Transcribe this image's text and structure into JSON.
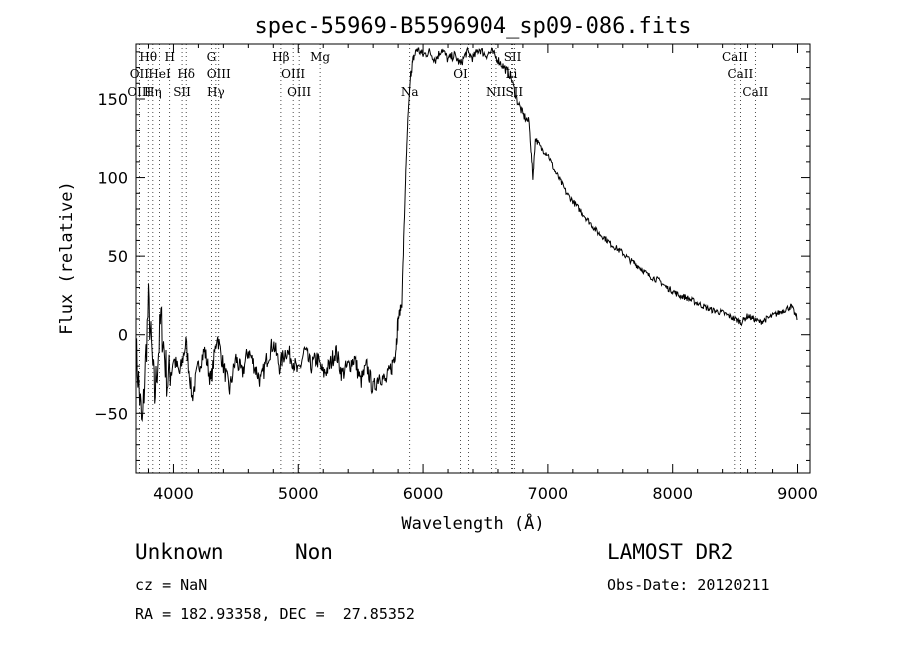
{
  "chart_data": {
    "type": "line",
    "title": "spec-55969-B5596904_sp09-086.fits",
    "xlabel": "Wavelength (Å)",
    "ylabel": "Flux (relative)",
    "xlim": [
      3700,
      9100
    ],
    "ylim": [
      -88,
      185
    ],
    "xticks": [
      4000,
      5000,
      6000,
      7000,
      8000,
      9000
    ],
    "yticks": [
      -50,
      0,
      50,
      100,
      150
    ],
    "grid": false,
    "legend": "none",
    "series": [
      {
        "x": [
          3700,
          3750,
          3800,
          3850,
          3900,
          3950,
          4000,
          4050,
          4100,
          4150,
          4200,
          4250,
          4300,
          4350,
          4400,
          4450,
          4500,
          4550,
          4600,
          4650,
          4700,
          4750,
          4800,
          4850,
          4900,
          4950,
          5000,
          5050,
          5100,
          5150,
          5200,
          5250,
          5300,
          5350,
          5400,
          5450,
          5500,
          5550,
          5600,
          5650,
          5700,
          5750,
          5780,
          5800,
          5830,
          5860,
          5880,
          5900,
          5920,
          5950,
          6000,
          6050,
          6100,
          6150,
          6200,
          6250,
          6300,
          6350,
          6400,
          6450,
          6500,
          6550,
          6600,
          6650,
          6700,
          6750,
          6800,
          6850,
          6880,
          6900,
          6950,
          7000,
          7050,
          7100,
          7150,
          7200,
          7250,
          7300,
          7350,
          7400,
          7450,
          7500,
          7550,
          7600,
          7650,
          7700,
          7750,
          7800,
          7850,
          7900,
          7950,
          8000,
          8050,
          8100,
          8150,
          8200,
          8250,
          8300,
          8350,
          8400,
          8450,
          8500,
          8550,
          8600,
          8650,
          8700,
          8750,
          8800,
          8850,
          8900,
          8950,
          9000
        ],
        "y": [
          -10,
          -60,
          20,
          -40,
          10,
          -30,
          -15,
          -25,
          -5,
          -40,
          -20,
          -10,
          -30,
          0,
          -20,
          -35,
          -15,
          -25,
          -10,
          -20,
          -30,
          -15,
          -5,
          -20,
          -10,
          -15,
          -25,
          -10,
          -20,
          -15,
          -25,
          -20,
          -10,
          -25,
          -20,
          -15,
          -30,
          -20,
          -35,
          -25,
          -30,
          -20,
          -10,
          10,
          20,
          100,
          140,
          165,
          175,
          182,
          178,
          180,
          175,
          182,
          175,
          178,
          172,
          180,
          176,
          182,
          178,
          180,
          175,
          170,
          165,
          150,
          140,
          135,
          100,
          125,
          118,
          115,
          105,
          98,
          90,
          85,
          80,
          75,
          70,
          65,
          62,
          58,
          55,
          52,
          48,
          45,
          42,
          38,
          36,
          34,
          30,
          28,
          25,
          24,
          22,
          20,
          18,
          16,
          15,
          14,
          12,
          10,
          8,
          12,
          10,
          8,
          10,
          12,
          14,
          16,
          18,
          10
        ]
      }
    ],
    "line_labels": [
      {
        "text": "Hθ",
        "x": 3798,
        "row": 0
      },
      {
        "text": "H",
        "x": 3970,
        "row": 0
      },
      {
        "text": "G",
        "x": 4304,
        "row": 0
      },
      {
        "text": "Hβ",
        "x": 4861,
        "row": 0
      },
      {
        "text": "Mg",
        "x": 5175,
        "row": 0
      },
      {
        "text": "SII",
        "x": 6717,
        "row": 0
      },
      {
        "text": "CaII",
        "x": 8498,
        "row": 0
      },
      {
        "text": "OII",
        "x": 3727,
        "row": 1
      },
      {
        "text": "HeI",
        "x": 3889,
        "row": 1
      },
      {
        "text": "Hδ",
        "x": 4102,
        "row": 1
      },
      {
        "text": "OIII",
        "x": 4363,
        "row": 1
      },
      {
        "text": "OIII",
        "x": 4959,
        "row": 1
      },
      {
        "text": "OI",
        "x": 6300,
        "row": 1
      },
      {
        "text": "Li",
        "x": 6708,
        "row": 1
      },
      {
        "text": "CaII",
        "x": 8542,
        "row": 1
      },
      {
        "text": "OIII",
        "x": 3727,
        "row": 2
      },
      {
        "text": "Hη",
        "x": 3835,
        "row": 2
      },
      {
        "text": "SII",
        "x": 4069,
        "row": 2
      },
      {
        "text": "Hγ",
        "x": 4340,
        "row": 2
      },
      {
        "text": "OIII",
        "x": 5007,
        "row": 2
      },
      {
        "text": "Na",
        "x": 5893,
        "row": 2
      },
      {
        "text": "NII",
        "x": 6584,
        "row": 2
      },
      {
        "text": "SII",
        "x": 6731,
        "row": 2
      },
      {
        "text": "CaII",
        "x": 8662,
        "row": 2
      }
    ],
    "marker_lines": [
      3727,
      3798,
      3835,
      3889,
      3970,
      4069,
      4102,
      4304,
      4340,
      4363,
      4861,
      4959,
      5007,
      5175,
      5893,
      6300,
      6363,
      6548,
      6584,
      6708,
      6717,
      6731,
      8498,
      8542,
      8662
    ],
    "color": "#000000"
  },
  "info": {
    "class_label": "Unknown",
    "subclass_label": "Non",
    "cz": "cz = NaN",
    "radec": "RA = 182.93358, DEC =  27.85352",
    "survey": "LAMOST DR2",
    "obs_date": "Obs-Date: 20120211"
  }
}
